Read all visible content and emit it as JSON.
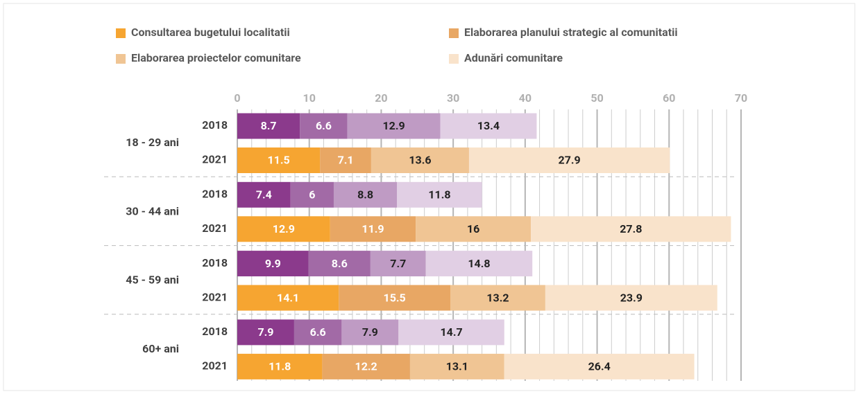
{
  "chart_data": {
    "type": "stacked-barh",
    "groups": [
      "18 - 29 ani",
      "30 - 44 ani",
      "45 - 59 ani",
      "60+ ani"
    ],
    "categories": [
      "2018",
      "2021",
      "2018",
      "2021",
      "2018",
      "2021",
      "2018",
      "2021"
    ],
    "series": [
      {
        "name": "Consultarea bugetului localitatii",
        "color": "#f6a531",
        "colors": [
          "#8b3a8c",
          "#f6a531",
          "#8b3a8c",
          "#f6a531",
          "#8b3a8c",
          "#f6a531",
          "#8b3a8c",
          "#f6a531"
        ],
        "values": [
          8.7,
          11.5,
          7.4,
          12.9,
          9.9,
          14.1,
          7.9,
          11.8
        ]
      },
      {
        "name": "Elaborarea planului strategic al comunitatii",
        "color": "#e8a764",
        "colors": [
          "#a26aa6",
          "#e8a764",
          "#a26aa6",
          "#e8a764",
          "#a26aa6",
          "#e8a764",
          "#a26aa6",
          "#e8a764"
        ],
        "values": [
          6.6,
          7.1,
          6,
          11.9,
          8.6,
          15.5,
          6.6,
          12.2
        ]
      },
      {
        "name": "Elaborarea proiectelor comunitare",
        "color": "#f0c594",
        "colors": [
          "#bf9bc4",
          "#f0c594",
          "#bf9bc4",
          "#f0c594",
          "#bf9bc4",
          "#f0c594",
          "#bf9bc4",
          "#f0c594"
        ],
        "values": [
          12.9,
          13.6,
          8.8,
          16,
          7.7,
          13.2,
          7.9,
          13.1
        ]
      },
      {
        "name": "Adunări comunitare",
        "color": "#f9e3cb",
        "colors": [
          "#e1cfe4",
          "#f9e3cb",
          "#e1cfe4",
          "#f9e3cb",
          "#e1cfe4",
          "#f9e3cb",
          "#e1cfe4",
          "#f9e3cb"
        ],
        "values": [
          13.4,
          27.9,
          11.8,
          27.8,
          14.8,
          23.9,
          14.7,
          26.4
        ]
      }
    ],
    "xlim": [
      0,
      70
    ],
    "xticks": [
      0,
      10,
      20,
      30,
      40,
      50,
      60,
      70
    ],
    "minor_xticks": [
      2,
      4,
      6,
      8,
      12,
      14,
      16,
      18,
      22,
      24,
      26,
      28,
      32,
      34,
      36,
      38,
      42,
      44,
      46,
      48,
      52,
      54,
      56,
      58,
      62,
      64,
      66,
      68
    ],
    "grid": true
  }
}
